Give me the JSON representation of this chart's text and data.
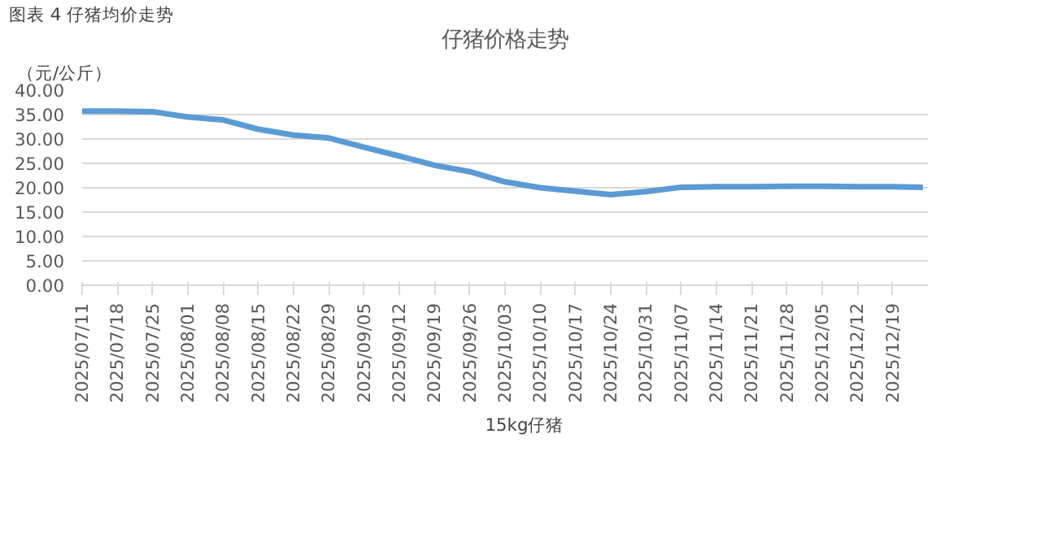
{
  "chart_data": {
    "type": "line",
    "title": "仔猪价格走势",
    "ylabel": "（元/公斤）",
    "annotations": [
      "图表 4 仔猪均价走势"
    ],
    "x": [
      "2025-07-11",
      "2025-07-18",
      "2025-07-25",
      "2025-08-01",
      "2025-08-08",
      "2025-08-15",
      "2025-08-22",
      "2025-08-29",
      "2025-09-05",
      "2025-09-12",
      "2025-09-19",
      "2025-09-26",
      "2025-10-03",
      "2025-10-10",
      "2025-10-17",
      "2025-10-24",
      "2025-10-31",
      "2025-11-07",
      "2025-11-14",
      "2025-11-21",
      "2025-11-28",
      "2025-12-05",
      "2025-12-12",
      "2025-12-19",
      "2025-12-25"
    ],
    "series": [
      {
        "name": "15kg仔猪",
        "color": "#5b9bd5",
        "values": [
          35.7,
          35.7,
          35.6,
          34.5,
          33.9,
          32.0,
          30.8,
          30.2,
          28.3,
          26.5,
          24.6,
          23.3,
          21.2,
          20.0,
          19.3,
          18.6,
          19.2,
          20.1,
          20.2,
          20.2,
          20.3,
          20.3,
          20.2,
          20.2,
          20.1
        ]
      }
    ],
    "xlim": [
      "2025-07-11",
      "2025-12-26"
    ],
    "xticks": [
      {
        "value": "2025-07-11",
        "label": "2025/07/11"
      },
      {
        "value": "2025-07-18",
        "label": "2025/07/18"
      },
      {
        "value": "2025-07-25",
        "label": "2025/07/25"
      },
      {
        "value": "2025-08-01",
        "label": "2025/08/01"
      },
      {
        "value": "2025-08-08",
        "label": "2025/08/08"
      },
      {
        "value": "2025-08-15",
        "label": "2025/08/15"
      },
      {
        "value": "2025-08-22",
        "label": "2025/08/22"
      },
      {
        "value": "2025-08-29",
        "label": "2025/08/29"
      },
      {
        "value": "2025-09-05",
        "label": "2025/09/05"
      },
      {
        "value": "2025-09-12",
        "label": "2025/09/12"
      },
      {
        "value": "2025-09-19",
        "label": "2025/09/19"
      },
      {
        "value": "2025-09-26",
        "label": "2025/09/26"
      },
      {
        "value": "2025-10-03",
        "label": "2025/10/03"
      },
      {
        "value": "2025-10-10",
        "label": "2025/10/10"
      },
      {
        "value": "2025-10-17",
        "label": "2025/10/17"
      },
      {
        "value": "2025-10-24",
        "label": "2025/10/24"
      },
      {
        "value": "2025-10-31",
        "label": "2025/10/31"
      },
      {
        "value": "2025-11-07",
        "label": "2025/11/07"
      },
      {
        "value": "2025-11-14",
        "label": "2025/11/14"
      },
      {
        "value": "2025-11-21",
        "label": "2025/11/21"
      },
      {
        "value": "2025-11-28",
        "label": "2025/11/28"
      },
      {
        "value": "2025-12-05",
        "label": "2025/12/05"
      },
      {
        "value": "2025-12-12",
        "label": "2025/12/12"
      },
      {
        "value": "2025-12-19",
        "label": "2025/12/19"
      }
    ],
    "ylim": [
      0,
      40
    ],
    "yticks": [
      {
        "value": 0,
        "label": "0.00"
      },
      {
        "value": 5,
        "label": "5.00"
      },
      {
        "value": 10,
        "label": "10.00"
      },
      {
        "value": 15,
        "label": "15.00"
      },
      {
        "value": 20,
        "label": "20.00"
      },
      {
        "value": 25,
        "label": "25.00"
      },
      {
        "value": 30,
        "label": "30.00"
      },
      {
        "value": 35,
        "label": "35.00"
      },
      {
        "value": 40,
        "label": "40.00"
      }
    ],
    "grid": "y",
    "legend": "bottom",
    "marker": "none",
    "line_style": "solid"
  }
}
